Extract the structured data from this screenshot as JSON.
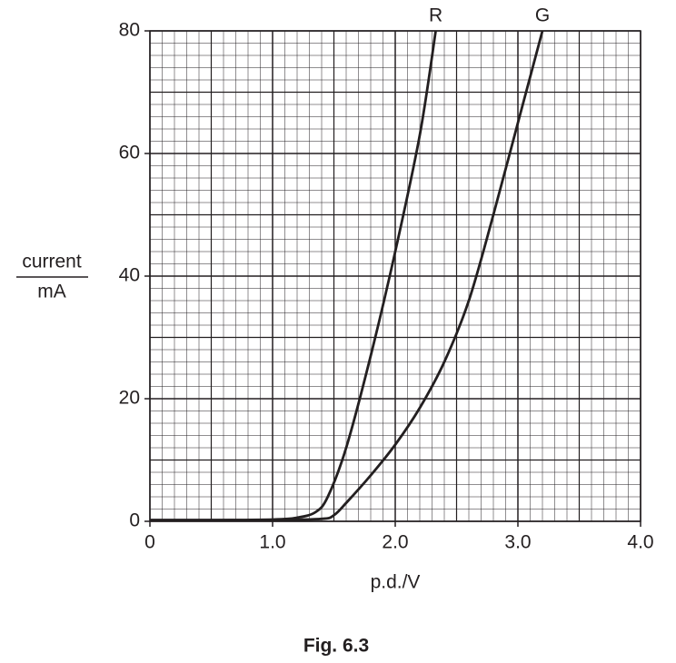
{
  "chart_data": {
    "type": "line",
    "caption": "Fig. 6.3",
    "xlabel": "p.d./V",
    "ylabel": {
      "top": "current",
      "bottom": "mA"
    },
    "xlim": [
      0,
      4
    ],
    "ylim": [
      0,
      80
    ],
    "xticks": [
      0,
      {
        "value": 1,
        "label": "1.0"
      },
      {
        "value": 2,
        "label": "2.0"
      },
      {
        "value": 3,
        "label": "3.0"
      },
      {
        "value": 4,
        "label": "4.0"
      }
    ],
    "yticks": [
      0,
      20,
      40,
      60,
      80
    ],
    "grid": {
      "major_per_tick": 2,
      "minor_per_tick": 10
    },
    "series": [
      {
        "name": "R",
        "color": "#231f20",
        "x": [
          0,
          0.5,
          1.0,
          1.2,
          1.35,
          1.45,
          1.6,
          1.8,
          2.0,
          2.2,
          2.33
        ],
        "values": [
          0.2,
          0.2,
          0.3,
          0.6,
          1.5,
          4,
          12,
          27,
          44,
          63,
          80
        ]
      },
      {
        "name": "G",
        "color": "#231f20",
        "x": [
          0,
          0.5,
          1.0,
          1.4,
          1.5,
          1.6,
          1.8,
          2.0,
          2.2,
          2.4,
          2.6,
          2.8,
          3.0,
          3.2
        ],
        "values": [
          0.2,
          0.2,
          0.2,
          0.4,
          1,
          3,
          7.5,
          12.5,
          18.5,
          26,
          36,
          50,
          65,
          80
        ]
      }
    ]
  }
}
